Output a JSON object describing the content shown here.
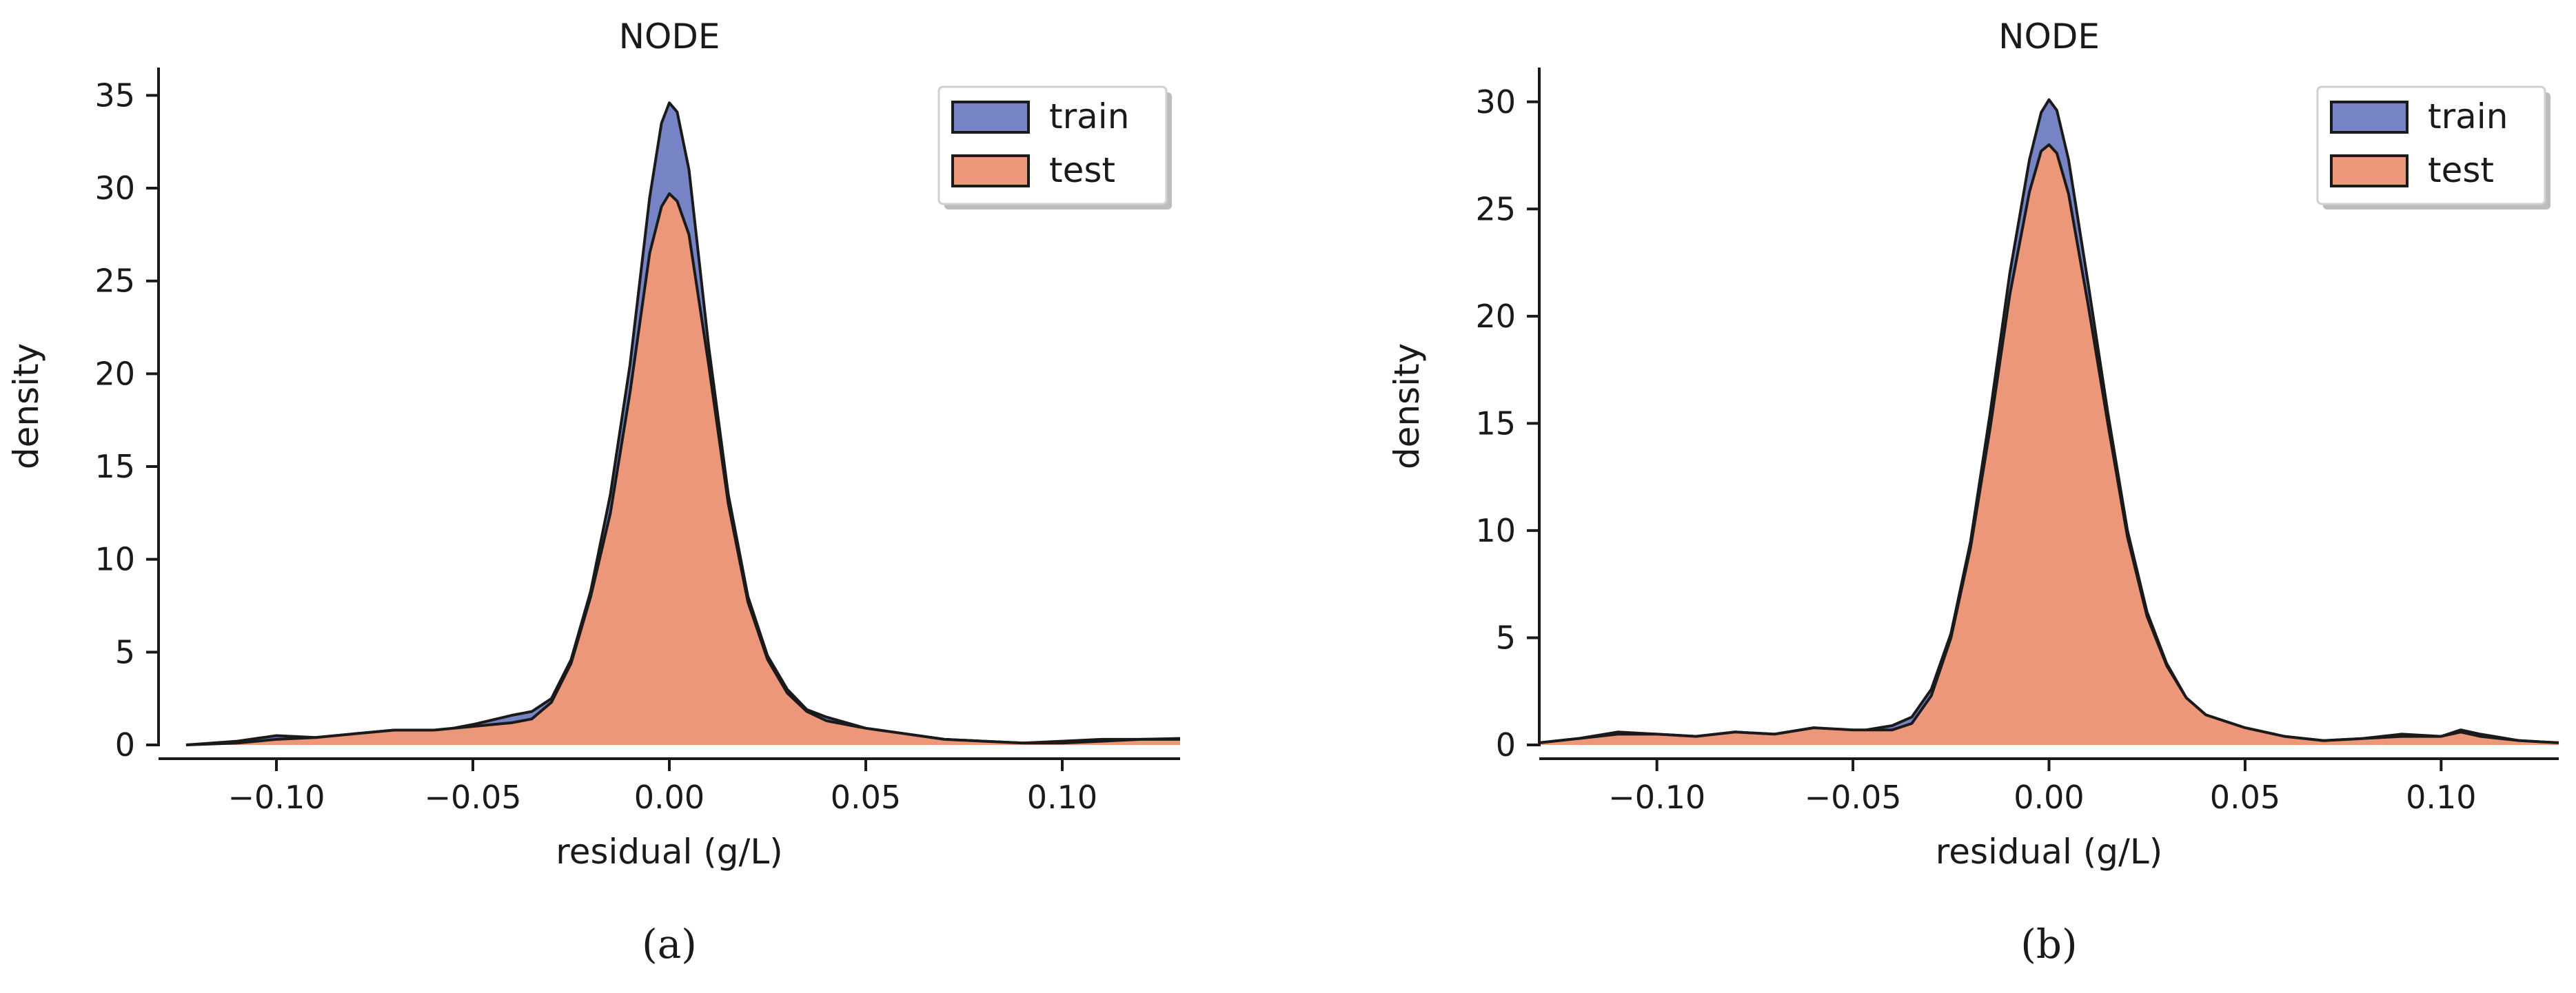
{
  "colors": {
    "train": "#7683c4",
    "test": "#ec967a",
    "axis": "#1a1a1a"
  },
  "chart_data": [
    {
      "type": "area",
      "panel_label": "(a)",
      "title": "NODE",
      "xlabel": "residual (g/L)",
      "ylabel": "density",
      "xlim": [
        -0.13,
        0.13
      ],
      "ylim": [
        0,
        36.5
      ],
      "xticks": [
        -0.1,
        -0.05,
        0.0,
        0.05,
        0.1
      ],
      "xtick_labels": [
        "−0.10",
        "−0.05",
        "0.00",
        "0.05",
        "0.10"
      ],
      "yticks": [
        0,
        5,
        10,
        15,
        20,
        25,
        30,
        35
      ],
      "ytick_labels": [
        "0",
        "5",
        "10",
        "15",
        "20",
        "25",
        "30",
        "35"
      ],
      "grid": false,
      "legend_position": "top-right",
      "series": [
        {
          "name": "train",
          "x": [
            -0.123,
            -0.11,
            -0.1,
            -0.09,
            -0.08,
            -0.07,
            -0.06,
            -0.05,
            -0.04,
            -0.035,
            -0.03,
            -0.025,
            -0.02,
            -0.015,
            -0.01,
            -0.005,
            -0.002,
            0.0,
            0.002,
            0.005,
            0.01,
            0.015,
            0.02,
            0.025,
            0.03,
            0.035,
            0.04,
            0.05,
            0.06,
            0.07,
            0.08,
            0.09,
            0.1,
            0.11,
            0.12,
            0.13
          ],
          "y": [
            0,
            0.2,
            0.5,
            0.4,
            0.6,
            0.8,
            0.7,
            1.1,
            1.6,
            1.8,
            2.5,
            4.6,
            8.3,
            13.5,
            20.5,
            29.5,
            33.5,
            34.6,
            34.1,
            31.0,
            21.5,
            13.5,
            8.0,
            4.8,
            3.0,
            1.9,
            1.5,
            0.9,
            0.6,
            0.3,
            0.2,
            0.1,
            0.2,
            0.3,
            0.3,
            0.35
          ]
        },
        {
          "name": "test",
          "x": [
            -0.123,
            -0.11,
            -0.1,
            -0.09,
            -0.08,
            -0.07,
            -0.06,
            -0.05,
            -0.04,
            -0.035,
            -0.03,
            -0.025,
            -0.02,
            -0.015,
            -0.01,
            -0.005,
            -0.002,
            0.0,
            0.002,
            0.005,
            0.01,
            0.015,
            0.02,
            0.025,
            0.03,
            0.035,
            0.04,
            0.05,
            0.06,
            0.07,
            0.08,
            0.09,
            0.1,
            0.11,
            0.12,
            0.13
          ],
          "y": [
            0,
            0.1,
            0.3,
            0.4,
            0.6,
            0.8,
            0.8,
            1.0,
            1.2,
            1.4,
            2.3,
            4.4,
            8.0,
            12.5,
            19.0,
            26.5,
            29.0,
            29.7,
            29.3,
            27.5,
            20.5,
            13.0,
            7.7,
            4.6,
            2.8,
            1.8,
            1.3,
            0.9,
            0.6,
            0.3,
            0.2,
            0.1,
            0.1,
            0.2,
            0.3,
            0.3
          ]
        }
      ]
    },
    {
      "type": "area",
      "panel_label": "(b)",
      "title": "NODE",
      "xlabel": "residual (g/L)",
      "ylabel": "density",
      "xlim": [
        -0.13,
        0.13
      ],
      "ylim": [
        0,
        31.6
      ],
      "xticks": [
        -0.1,
        -0.05,
        0.0,
        0.05,
        0.1
      ],
      "xtick_labels": [
        "−0.10",
        "−0.05",
        "0.00",
        "0.05",
        "0.10"
      ],
      "yticks": [
        0,
        5,
        10,
        15,
        20,
        25,
        30
      ],
      "ytick_labels": [
        "0",
        "5",
        "10",
        "15",
        "20",
        "25",
        "30"
      ],
      "grid": false,
      "legend_position": "top-right",
      "series": [
        {
          "name": "train",
          "x": [
            -0.13,
            -0.12,
            -0.11,
            -0.1,
            -0.09,
            -0.08,
            -0.07,
            -0.06,
            -0.05,
            -0.04,
            -0.035,
            -0.03,
            -0.025,
            -0.02,
            -0.015,
            -0.01,
            -0.005,
            -0.002,
            0.0,
            0.002,
            0.005,
            0.01,
            0.015,
            0.02,
            0.025,
            0.03,
            0.035,
            0.04,
            0.05,
            0.06,
            0.07,
            0.08,
            0.09,
            0.1,
            0.105,
            0.11,
            0.12,
            0.13
          ],
          "y": [
            0.1,
            0.3,
            0.6,
            0.5,
            0.4,
            0.6,
            0.5,
            0.8,
            0.6,
            0.9,
            1.3,
            2.6,
            5.2,
            9.5,
            15.5,
            22.0,
            27.3,
            29.5,
            30.1,
            29.6,
            27.3,
            21.5,
            15.5,
            10.0,
            6.2,
            3.8,
            2.2,
            1.4,
            0.8,
            0.4,
            0.2,
            0.3,
            0.5,
            0.4,
            0.7,
            0.5,
            0.2,
            0.1
          ]
        },
        {
          "name": "test",
          "x": [
            -0.13,
            -0.12,
            -0.11,
            -0.1,
            -0.09,
            -0.08,
            -0.07,
            -0.06,
            -0.05,
            -0.04,
            -0.035,
            -0.03,
            -0.025,
            -0.02,
            -0.015,
            -0.01,
            -0.005,
            -0.002,
            0.0,
            0.002,
            0.005,
            0.01,
            0.015,
            0.02,
            0.025,
            0.03,
            0.035,
            0.04,
            0.05,
            0.06,
            0.07,
            0.08,
            0.09,
            0.1,
            0.105,
            0.11,
            0.12,
            0.13
          ],
          "y": [
            0.1,
            0.3,
            0.5,
            0.5,
            0.4,
            0.6,
            0.5,
            0.8,
            0.7,
            0.7,
            1.0,
            2.3,
            5.0,
            9.2,
            14.8,
            21.0,
            25.8,
            27.7,
            28.0,
            27.6,
            25.7,
            20.5,
            15.0,
            9.7,
            6.0,
            3.7,
            2.2,
            1.4,
            0.8,
            0.4,
            0.2,
            0.3,
            0.4,
            0.4,
            0.6,
            0.4,
            0.2,
            0.1
          ]
        }
      ]
    }
  ]
}
